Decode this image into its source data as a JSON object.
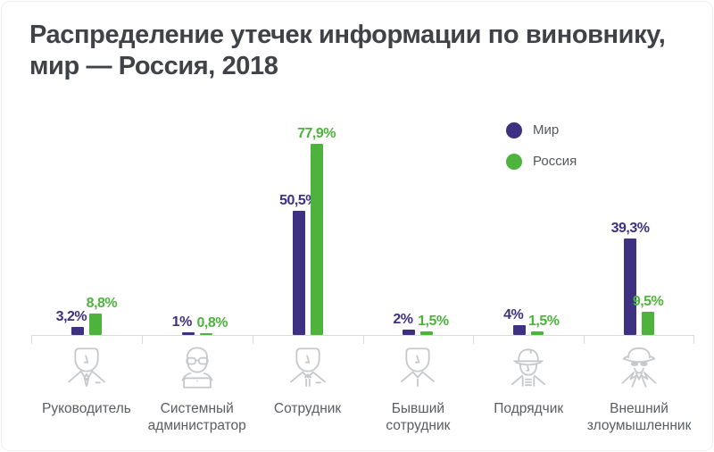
{
  "title": {
    "line1": "Распределение утечек информации по виновнику,",
    "line2": "мир — Россия, 2018"
  },
  "legend": {
    "items": [
      {
        "label": "Мир",
        "color": "#3e3182"
      },
      {
        "label": "Россия",
        "color": "#4db33d"
      }
    ]
  },
  "chart_data": {
    "type": "bar",
    "title": "Распределение утечек информации по виновнику, мир — Россия, 2018",
    "categories": [
      "Руководитель",
      "Системный администратор",
      "Сотрудник",
      "Бывший сотрудник",
      "Подрядчик",
      "Внешний злоумышленник"
    ],
    "series": [
      {
        "name": "Мир",
        "color": "#3e3182",
        "values": [
          3.2,
          1,
          50.5,
          2,
          4,
          39.3
        ],
        "value_labels": [
          "3,2%",
          "1%",
          "50,5%",
          "2%",
          "4%",
          "39,3%"
        ]
      },
      {
        "name": "Россия",
        "color": "#4db33d",
        "values": [
          8.8,
          0.8,
          77.9,
          1.5,
          1.5,
          9.5
        ],
        "value_labels": [
          "8,8%",
          "0,8%",
          "77,9%",
          "1,5%",
          "1,5%",
          "9,5%"
        ]
      }
    ],
    "ylim": [
      0,
      80
    ],
    "grid": false,
    "legend_position": "top-right",
    "icons": [
      "manager-icon",
      "sysadmin-icon",
      "employee-icon",
      "former-employee-icon",
      "contractor-icon",
      "external-attacker-icon"
    ]
  }
}
